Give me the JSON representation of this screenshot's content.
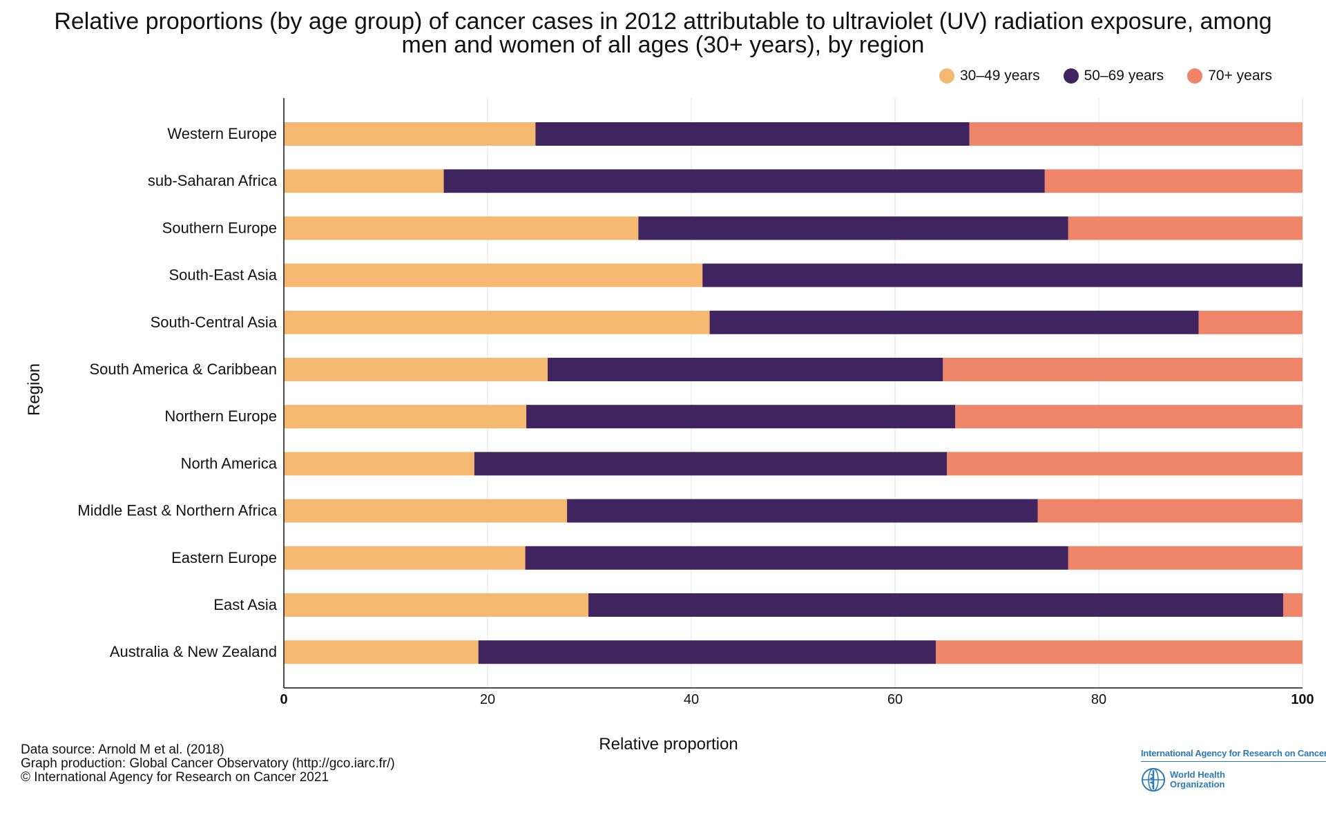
{
  "chart_data": {
    "type": "bar",
    "orientation": "horizontal",
    "stacked": true,
    "title": "Relative proportions (by age group) of cancer cases in 2012 attributable to ultraviolet (UV) radiation exposure, among men and women of all ages (30+ years), by region",
    "title_lines": [
      "Relative proportions (by age group) of cancer cases in 2012 attributable to ultraviolet (UV) radiation exposure, among",
      "men and women of all ages (30+ years), by region"
    ],
    "xlabel": "Relative proportion",
    "ylabel": "Region",
    "xlim": [
      0,
      100
    ],
    "xticks": [
      0,
      20,
      40,
      60,
      80,
      100
    ],
    "grid": "vertical",
    "legend_placement": "top-right",
    "categories": [
      "Western Europe",
      "sub-Saharan Africa",
      "Southern Europe",
      "South-East Asia",
      "South-Central Asia",
      "South America & Caribbean",
      "Northern Europe",
      "North America",
      "Middle East & Northern Africa",
      "Eastern Europe",
      "East Asia",
      "Australia & New Zealand"
    ],
    "series": [
      {
        "name": "30–49 years",
        "color": "#f4b870",
        "values": [
          24.7,
          15.7,
          34.8,
          41.1,
          41.8,
          25.9,
          23.8,
          18.7,
          27.8,
          23.7,
          29.9,
          19.1
        ]
      },
      {
        "name": "50–69 years",
        "color": "#3f2460",
        "values": [
          42.6,
          59.0,
          42.2,
          58.9,
          48.0,
          38.8,
          42.1,
          46.4,
          46.2,
          53.3,
          68.2,
          44.9
        ]
      },
      {
        "name": "70+ years",
        "color": "#ee8468",
        "values": [
          32.7,
          25.3,
          23.0,
          0.0,
          10.2,
          35.3,
          34.1,
          34.9,
          26.0,
          23.0,
          1.9,
          36.0
        ]
      }
    ]
  },
  "footer": {
    "data_source": "Data source: Arnold M et al. (2018)",
    "graph_production": "Graph production: Global Cancer Observatory (http://gco.iarc.fr/)",
    "copyright": "© International Agency for Research on Cancer 2021"
  },
  "logos": {
    "iarc": "International Agency for Research on Cancer",
    "who_line1": "World Health",
    "who_line2": "Organization"
  }
}
